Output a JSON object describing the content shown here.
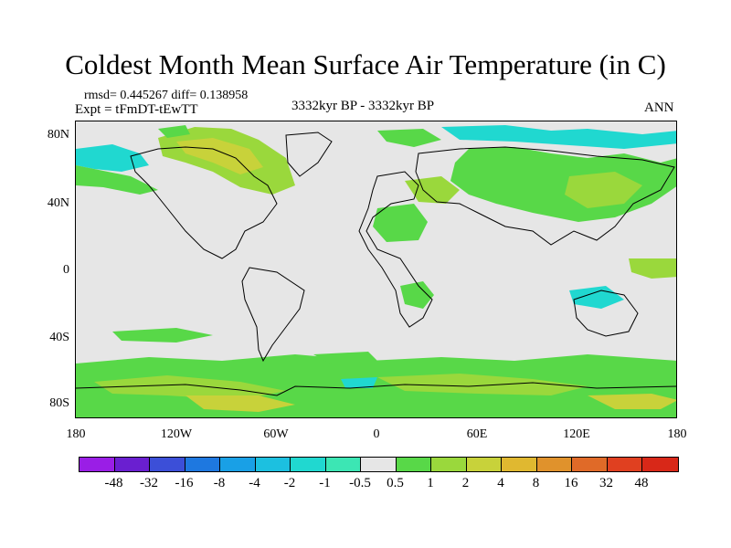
{
  "title": "Coldest Month Mean Surface Air Temperature (in C)",
  "stats": "rmsd= 0.445267 diff= 0.138958",
  "experiment": "Expt = tFmDT-tEwTT",
  "period": "3332kyr BP - 3332kyr BP",
  "season": "ANN",
  "map": {
    "background_color": "#e6e6e6",
    "y_ticks": [
      "80N",
      "40N",
      "0",
      "40S",
      "80S"
    ],
    "x_ticks": [
      "180",
      "120W",
      "60W",
      "0",
      "60E",
      "120E",
      "180"
    ]
  },
  "colorbar": {
    "colors": [
      "#9a1ee6",
      "#6a1fd0",
      "#3c4fd8",
      "#1e78e0",
      "#19a0e6",
      "#1cc0e0",
      "#20d8d0",
      "#3ce6b4",
      "#e6e6e6",
      "#58d848",
      "#9ad83c",
      "#c8d23a",
      "#e0b830",
      "#e0922c",
      "#e06a28",
      "#e04020",
      "#d82818"
    ],
    "labels": [
      "-48",
      "-32",
      "-16",
      "-8",
      "-4",
      "-2",
      "-1",
      "-0.5",
      "0.5",
      "1",
      "2",
      "4",
      "8",
      "16",
      "32",
      "48"
    ]
  }
}
